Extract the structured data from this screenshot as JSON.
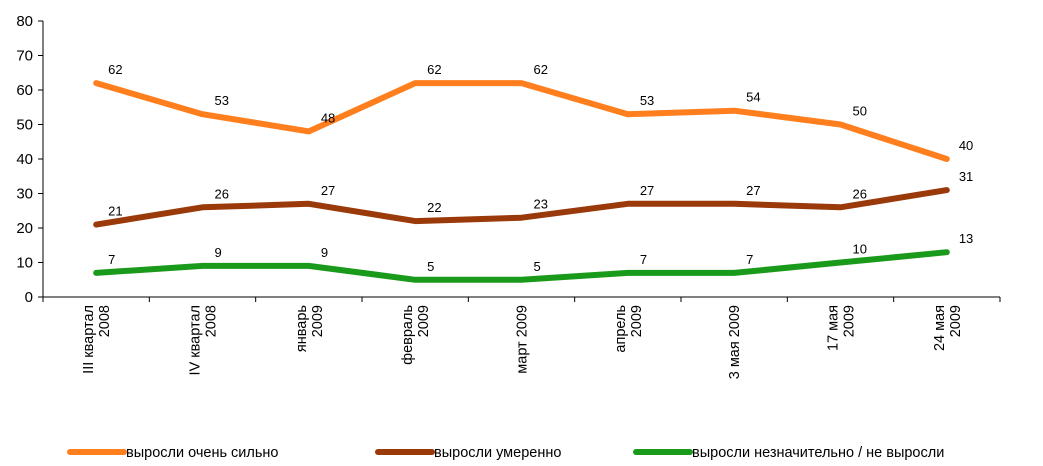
{
  "chart_data": {
    "type": "line",
    "title": "",
    "xlabel": "",
    "ylabel": "",
    "ylim": [
      0,
      80
    ],
    "yticks": [
      0,
      10,
      20,
      30,
      40,
      50,
      60,
      70,
      80
    ],
    "grid": false,
    "legend_position": "bottom",
    "categories": [
      [
        "III квартал",
        "2008"
      ],
      [
        "IV квартал",
        "2008"
      ],
      [
        "январь",
        "2009"
      ],
      [
        "февраль",
        "2009"
      ],
      [
        "март 2009"
      ],
      [
        "апрель",
        "2009"
      ],
      [
        "3 мая 2009"
      ],
      [
        "17 мая",
        "2009"
      ],
      [
        "24 мая",
        "2009"
      ]
    ],
    "series": [
      {
        "name": "выросли очень сильно",
        "color": "#ff7f1e",
        "values": [
          62,
          53,
          48,
          62,
          62,
          53,
          54,
          50,
          40
        ],
        "labels": [
          "62",
          "53",
          "48",
          "62",
          "62",
          "53",
          "54",
          "50",
          "40"
        ]
      },
      {
        "name": "выросли умеренно",
        "color": "#9a3a0a",
        "values": [
          21,
          26,
          27,
          22,
          23,
          27,
          27,
          26,
          31
        ],
        "labels": [
          "21",
          "26",
          "27",
          "22",
          "23",
          "27",
          "27",
          "26",
          "31"
        ]
      },
      {
        "name": "выросли незначительно / не выросли",
        "color": "#1a9a1a",
        "values": [
          7,
          9,
          9,
          5,
          5,
          7,
          7,
          10,
          13
        ],
        "labels": [
          "7",
          "9",
          "9",
          "5",
          "5",
          "7",
          "7",
          "10",
          "13"
        ]
      }
    ]
  }
}
